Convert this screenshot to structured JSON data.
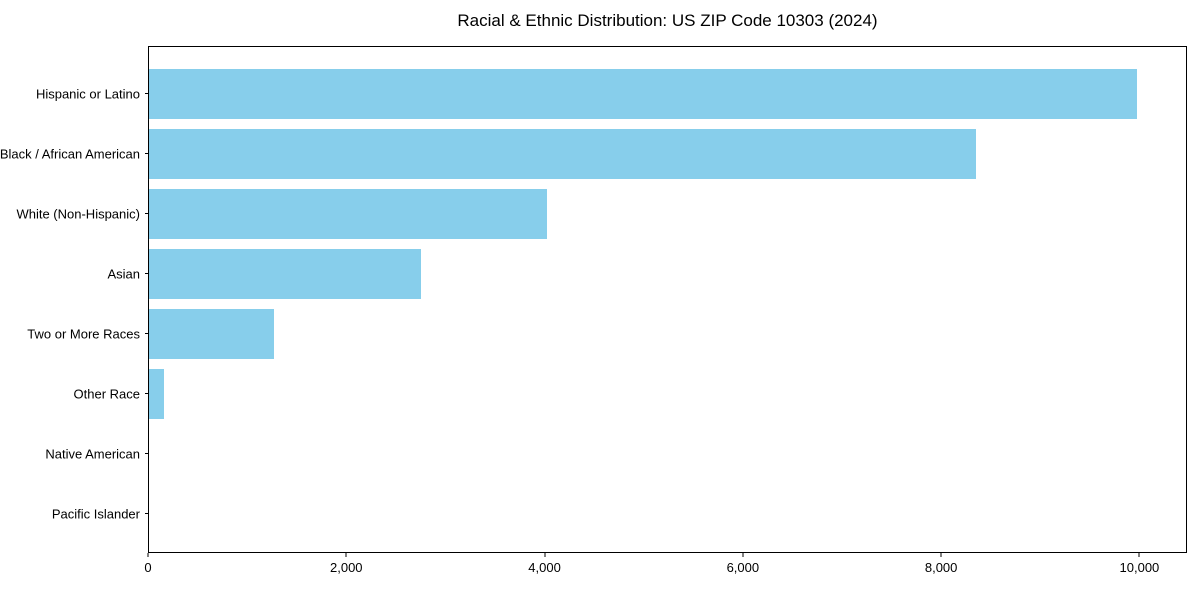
{
  "chart_data": {
    "type": "bar",
    "orientation": "horizontal",
    "title": "Racial & Ethnic Distribution: US ZIP Code 10303 (2024)",
    "categories": [
      "Hispanic or Latino",
      "Black / African American",
      "White (Non-Hispanic)",
      "Asian",
      "Two or More Races",
      "Other Race",
      "Native American",
      "Pacific Islander"
    ],
    "values": [
      9980,
      8360,
      4020,
      2750,
      1260,
      155,
      0,
      0
    ],
    "xlabel": "",
    "ylabel": "",
    "xlim": [
      0,
      10480
    ],
    "xticks": [
      0,
      2000,
      4000,
      6000,
      8000,
      10000
    ],
    "xtick_labels": [
      "0",
      "2,000",
      "4,000",
      "6,000",
      "8,000",
      "10,000"
    ],
    "grid": false,
    "legend_position": "none",
    "colors": {
      "bar": "#87CEEB",
      "axis": "#000000",
      "text": "#000000",
      "background": "#FFFFFF"
    }
  }
}
